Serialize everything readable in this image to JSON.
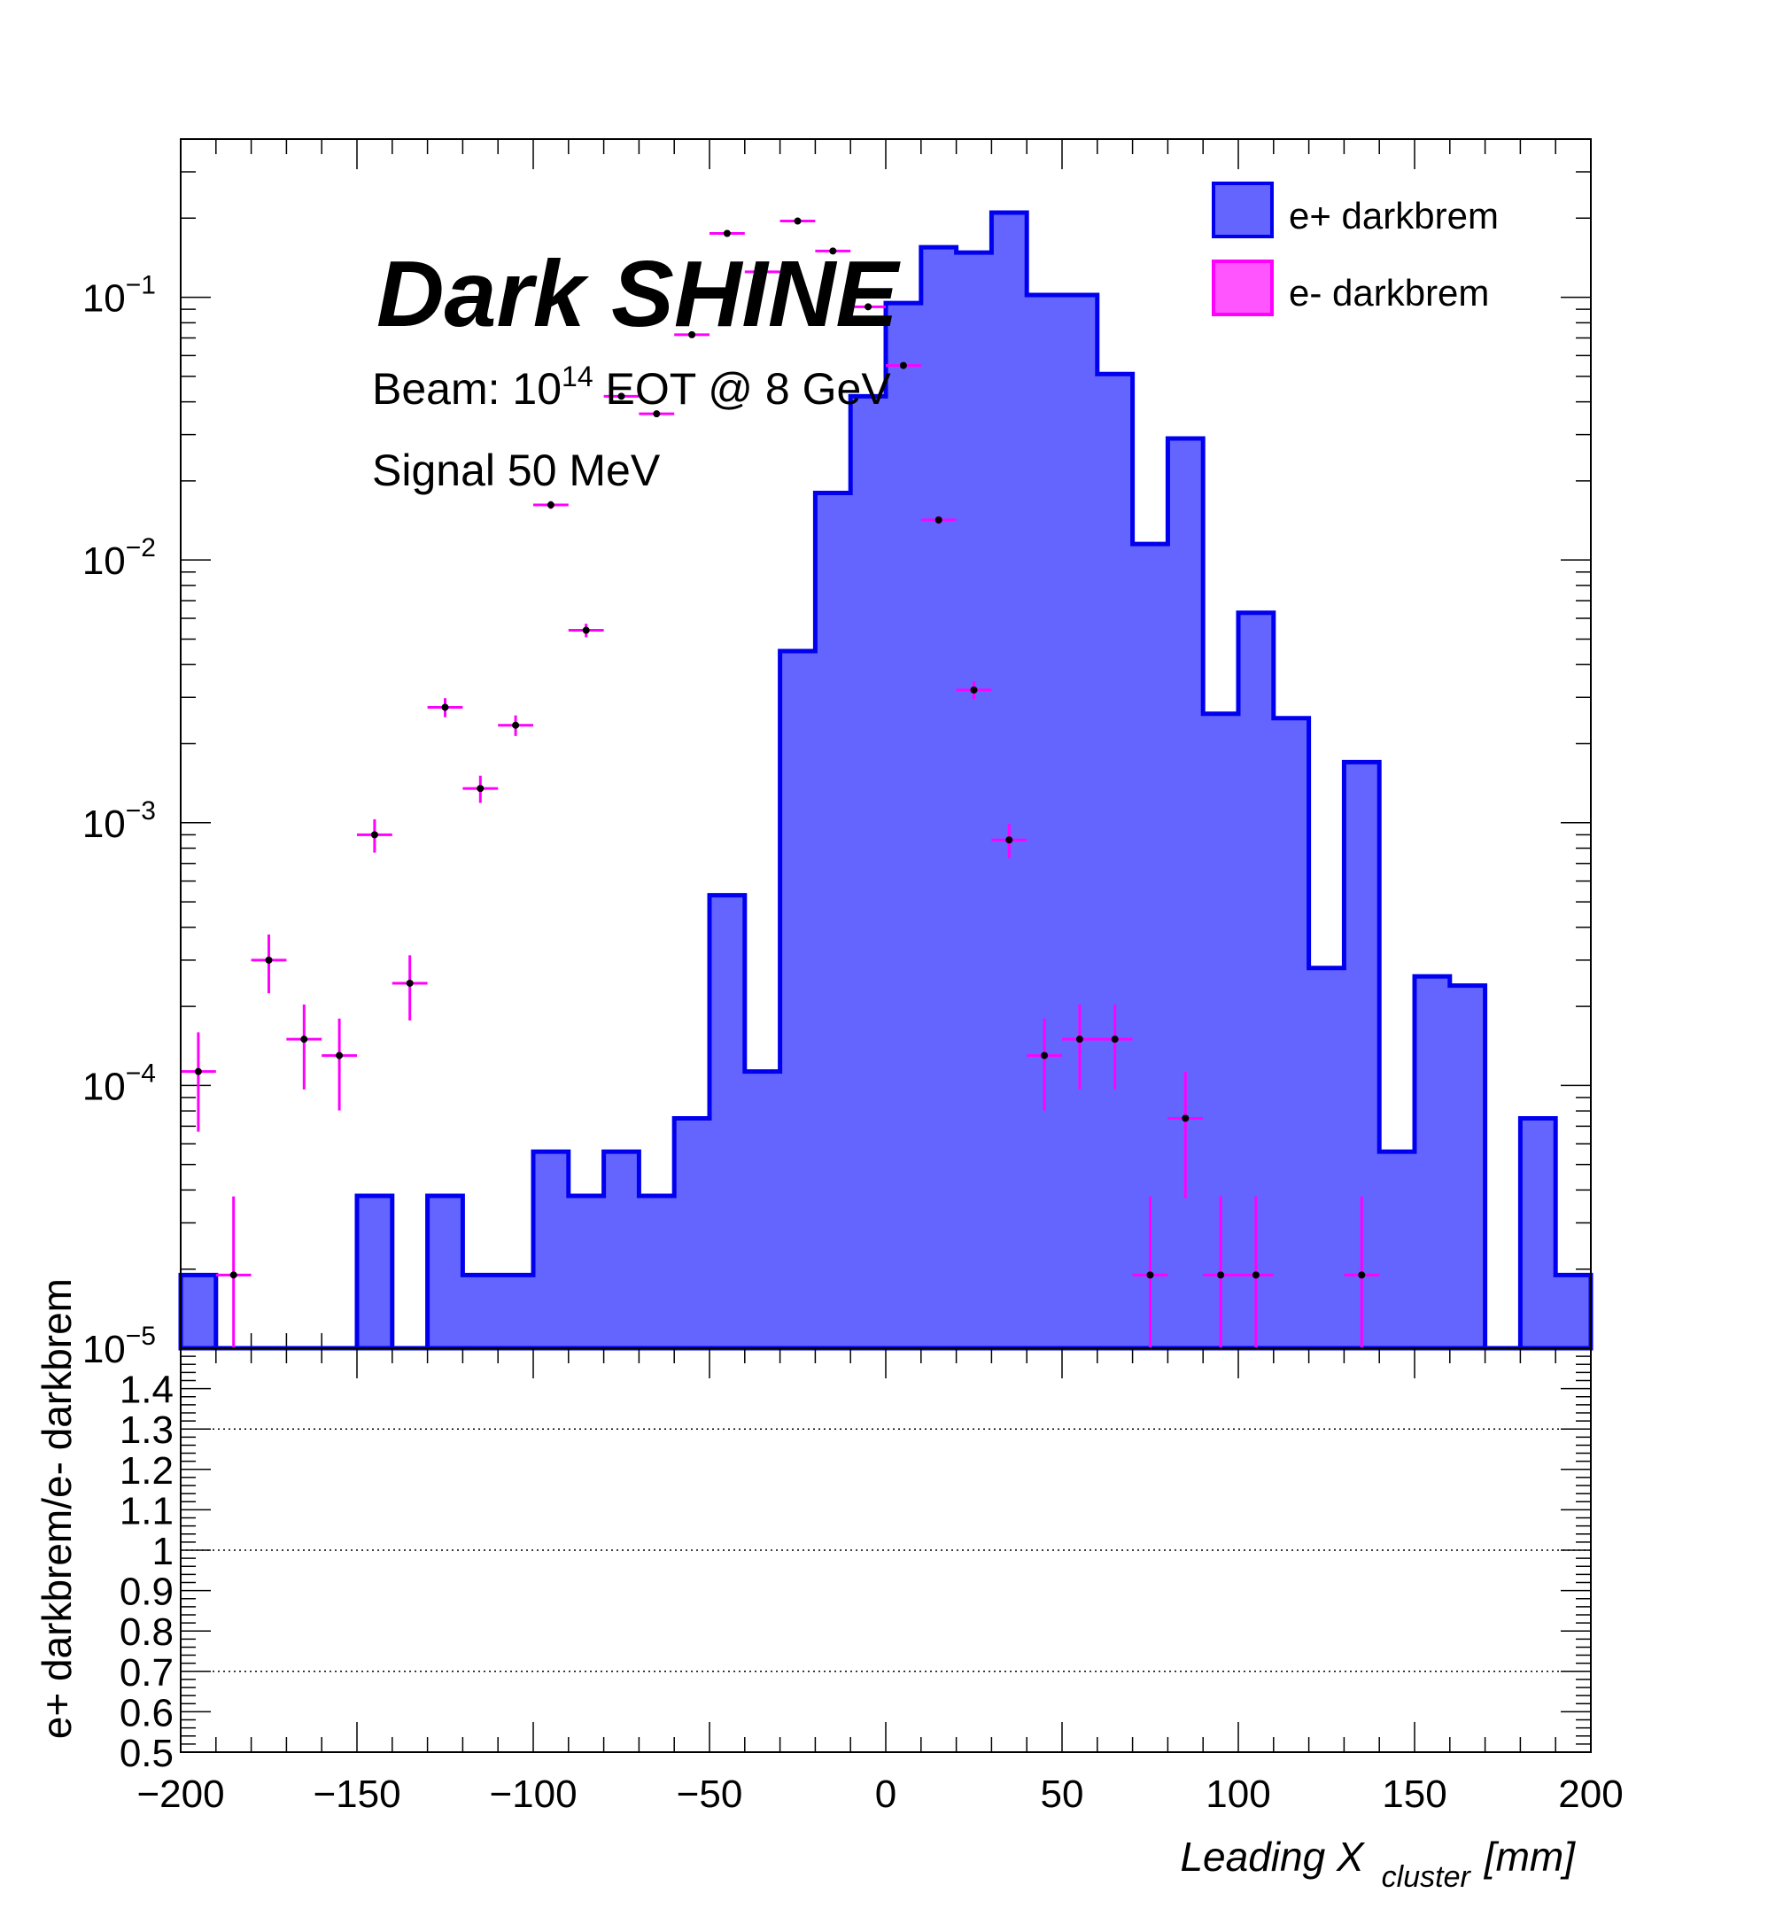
{
  "chart_data": {
    "type": "histogram",
    "x": {
      "label": "Leading X",
      "label_sub": "cluster",
      "label_unit": "[mm]",
      "range": [
        -200,
        200
      ],
      "bin_width": 10,
      "tick_labels": [
        "−200",
        "−150",
        "−100",
        "−50",
        "0",
        "50",
        "100",
        "150",
        "200"
      ]
    },
    "top_panel": {
      "y_scale": "log",
      "y_range": [
        1e-05,
        0.4
      ],
      "y_tick_labels": [
        {
          "base": "10",
          "exp": "−5"
        },
        {
          "base": "10",
          "exp": "−4"
        },
        {
          "base": "10",
          "exp": "−3"
        },
        {
          "base": "10",
          "exp": "−2"
        },
        {
          "base": "10",
          "exp": "−1"
        }
      ],
      "series": [
        {
          "name": "e+ darkbrem",
          "kind": "filled-step",
          "fill": "#6464ff",
          "line": "#0000ee",
          "values": [
            1.9e-05,
            0,
            0,
            0,
            0,
            3.8e-05,
            0,
            3.8e-05,
            1.9e-05,
            1.9e-05,
            5.6e-05,
            3.8e-05,
            5.6e-05,
            3.8e-05,
            7.5e-05,
            0.00053,
            0.000113,
            0.0045,
            0.018,
            0.042,
            0.095,
            0.155,
            0.148,
            0.21,
            0.102,
            0.102,
            0.051,
            0.0115,
            0.029,
            0.0026,
            0.0063,
            0.0025,
            0.00028,
            0.0017,
            5.6e-05,
            0.00026,
            0.00024,
            0,
            7.5e-05,
            1.9e-05
          ]
        },
        {
          "name": "e- darkbrem",
          "kind": "points-with-errors",
          "fill": "#ff55ff",
          "line": "#ff00ff",
          "values": [
            0.000113,
            1.9e-05,
            0.0003,
            0.00015,
            0.00013,
            0.0009,
            0.000245,
            0.00275,
            0.00135,
            0.00235,
            0.0162,
            0.0054,
            0.042,
            0.036,
            0.072,
            0.175,
            0.125,
            0.195,
            0.15,
            0.092,
            0.055,
            0.0142,
            0.0032,
            0.00086,
            0.00013,
            0.00015,
            0.00015,
            1.9e-05,
            7.5e-05,
            1.9e-05,
            1.9e-05,
            0,
            0,
            1.9e-05,
            0,
            0,
            0,
            0,
            0,
            0
          ]
        }
      ]
    },
    "bottom_panel": {
      "y_label": "e+ darkbrem/e- darkbrem",
      "y_range": [
        0.5,
        1.5
      ],
      "y_tick_labels": [
        "0.5",
        "0.6",
        "0.7",
        "0.8",
        "0.9",
        "1",
        "1.1",
        "1.2",
        "1.3",
        "1.4"
      ],
      "reference_lines": [
        0.7,
        1.0,
        1.3
      ]
    },
    "legend": {
      "placement": "top-right",
      "entries": [
        "e+ darkbrem",
        "e- darkbrem"
      ]
    },
    "annotations": {
      "experiment": "Dark SHINE",
      "beam_prefix": "Beam: 10",
      "beam_exp": "14",
      "beam_suffix": " EOT @ 8 GeV",
      "signal": "Signal 50 MeV"
    }
  }
}
